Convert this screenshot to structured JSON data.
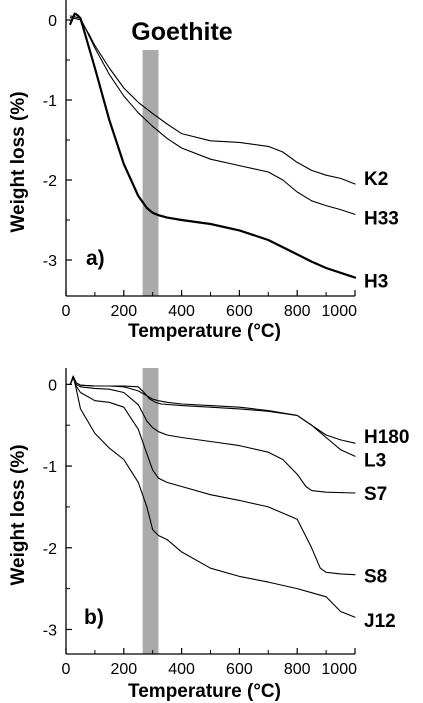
{
  "figure": {
    "band_label": "Goethite",
    "band_color": "#aaaaaa"
  },
  "chart_data": [
    {
      "type": "line",
      "panel_label": "a)",
      "xlabel": "Temperature (°C)",
      "ylabel": "Weight loss (%)",
      "xlim": [
        0,
        1000
      ],
      "ylim": [
        -3.45,
        0.25
      ],
      "xticks": [
        0,
        200,
        400,
        600,
        800,
        1000
      ],
      "yticks": [
        0,
        -1,
        -2,
        -3
      ],
      "xtick_labels": [
        "0",
        "200",
        "400",
        "600",
        "800",
        "1000"
      ],
      "ytick_labels": [
        "0",
        "-1",
        "-2",
        "-3"
      ],
      "highlight_band": [
        265,
        320
      ],
      "grid": false,
      "legend": "direct labels at right end of lines",
      "series": [
        {
          "name": "K2",
          "stroke_width": 1.1,
          "x": [
            15,
            30,
            40,
            50,
            60,
            80,
            100,
            150,
            200,
            250,
            300,
            350,
            400,
            500,
            600,
            700,
            750,
            800,
            850,
            900,
            950,
            1000
          ],
          "y": [
            0.03,
            0.02,
            0.01,
            0.0,
            -0.06,
            -0.18,
            -0.32,
            -0.6,
            -0.85,
            -1.03,
            -1.17,
            -1.3,
            -1.42,
            -1.51,
            -1.53,
            -1.58,
            -1.65,
            -1.78,
            -1.88,
            -1.94,
            -1.98,
            -2.05
          ]
        },
        {
          "name": "H33",
          "stroke_width": 1.1,
          "x": [
            15,
            30,
            40,
            50,
            60,
            80,
            100,
            150,
            200,
            250,
            300,
            350,
            400,
            500,
            600,
            700,
            750,
            800,
            850,
            900,
            950,
            1000
          ],
          "y": [
            0.05,
            0.04,
            0.03,
            0.02,
            -0.05,
            -0.2,
            -0.35,
            -0.68,
            -0.95,
            -1.16,
            -1.33,
            -1.48,
            -1.6,
            -1.74,
            -1.82,
            -1.9,
            -2.0,
            -2.15,
            -2.26,
            -2.32,
            -2.37,
            -2.43
          ]
        },
        {
          "name": "H3",
          "stroke_width": 2.2,
          "x": [
            15,
            30,
            40,
            50,
            60,
            80,
            100,
            150,
            200,
            250,
            280,
            300,
            320,
            350,
            400,
            500,
            600,
            700,
            800,
            850,
            900,
            950,
            1000
          ],
          "y": [
            -0.05,
            0.08,
            0.06,
            0.02,
            -0.1,
            -0.35,
            -0.6,
            -1.25,
            -1.8,
            -2.2,
            -2.35,
            -2.41,
            -2.44,
            -2.47,
            -2.5,
            -2.55,
            -2.63,
            -2.75,
            -2.93,
            -3.02,
            -3.1,
            -3.16,
            -3.22
          ]
        }
      ]
    },
    {
      "type": "line",
      "panel_label": "b)",
      "xlabel": "Temperature (°C)",
      "ylabel": "Weight loss (%)",
      "xlim": [
        0,
        1000
      ],
      "ylim": [
        -3.3,
        0.2
      ],
      "xticks": [
        0,
        200,
        400,
        600,
        800,
        1000
      ],
      "yticks": [
        0,
        -1,
        -2,
        -3
      ],
      "xtick_labels": [
        "0",
        "200",
        "400",
        "600",
        "800",
        "1000"
      ],
      "ytick_labels": [
        "0",
        "-1",
        "-2",
        "-3"
      ],
      "highlight_band": [
        265,
        320
      ],
      "grid": false,
      "legend": "direct labels at right end of lines",
      "series": [
        {
          "name": "H180",
          "stroke_width": 1.1,
          "x": [
            15,
            25,
            35,
            50,
            100,
            200,
            250,
            270,
            290,
            310,
            330,
            400,
            500,
            600,
            700,
            800,
            850,
            900,
            950,
            1000
          ],
          "y": [
            0.0,
            0.1,
            0.02,
            -0.01,
            -0.02,
            -0.02,
            -0.03,
            -0.1,
            -0.18,
            -0.22,
            -0.24,
            -0.26,
            -0.28,
            -0.3,
            -0.33,
            -0.38,
            -0.5,
            -0.62,
            -0.68,
            -0.72
          ]
        },
        {
          "name": "L3",
          "stroke_width": 1.1,
          "x": [
            15,
            25,
            35,
            50,
            100,
            150,
            200,
            250,
            280,
            300,
            320,
            350,
            400,
            500,
            600,
            700,
            800,
            850,
            900,
            950,
            1000
          ],
          "y": [
            0.0,
            0.1,
            0.02,
            -0.01,
            -0.02,
            -0.02,
            -0.03,
            -0.08,
            -0.14,
            -0.18,
            -0.2,
            -0.22,
            -0.24,
            -0.26,
            -0.28,
            -0.32,
            -0.38,
            -0.5,
            -0.65,
            -0.8,
            -0.88
          ]
        },
        {
          "name": "S7",
          "stroke_width": 1.1,
          "x": [
            15,
            25,
            35,
            50,
            100,
            150,
            200,
            250,
            280,
            300,
            320,
            350,
            400,
            500,
            600,
            700,
            750,
            800,
            830,
            850,
            900,
            1000
          ],
          "y": [
            0.0,
            0.08,
            0.0,
            -0.03,
            -0.05,
            -0.06,
            -0.1,
            -0.25,
            -0.45,
            -0.53,
            -0.58,
            -0.62,
            -0.65,
            -0.7,
            -0.75,
            -0.83,
            -0.92,
            -1.1,
            -1.25,
            -1.3,
            -1.32,
            -1.33
          ]
        },
        {
          "name": "S8",
          "stroke_width": 1.1,
          "x": [
            15,
            25,
            35,
            50,
            100,
            150,
            200,
            250,
            280,
            300,
            320,
            350,
            400,
            500,
            600,
            700,
            800,
            850,
            880,
            900,
            950,
            1000
          ],
          "y": [
            0.0,
            0.08,
            -0.02,
            -0.1,
            -0.2,
            -0.22,
            -0.28,
            -0.55,
            -0.85,
            -1.05,
            -1.15,
            -1.2,
            -1.25,
            -1.35,
            -1.42,
            -1.5,
            -1.65,
            -2.0,
            -2.25,
            -2.3,
            -2.32,
            -2.33
          ]
        },
        {
          "name": "J12",
          "stroke_width": 1.1,
          "x": [
            15,
            25,
            35,
            50,
            100,
            150,
            200,
            250,
            280,
            300,
            320,
            350,
            400,
            500,
            600,
            700,
            800,
            850,
            900,
            950,
            1000
          ],
          "y": [
            0.0,
            0.1,
            -0.05,
            -0.3,
            -0.6,
            -0.78,
            -0.92,
            -1.2,
            -1.5,
            -1.78,
            -1.85,
            -1.9,
            -2.05,
            -2.25,
            -2.35,
            -2.42,
            -2.5,
            -2.55,
            -2.6,
            -2.78,
            -2.85
          ]
        }
      ]
    }
  ]
}
